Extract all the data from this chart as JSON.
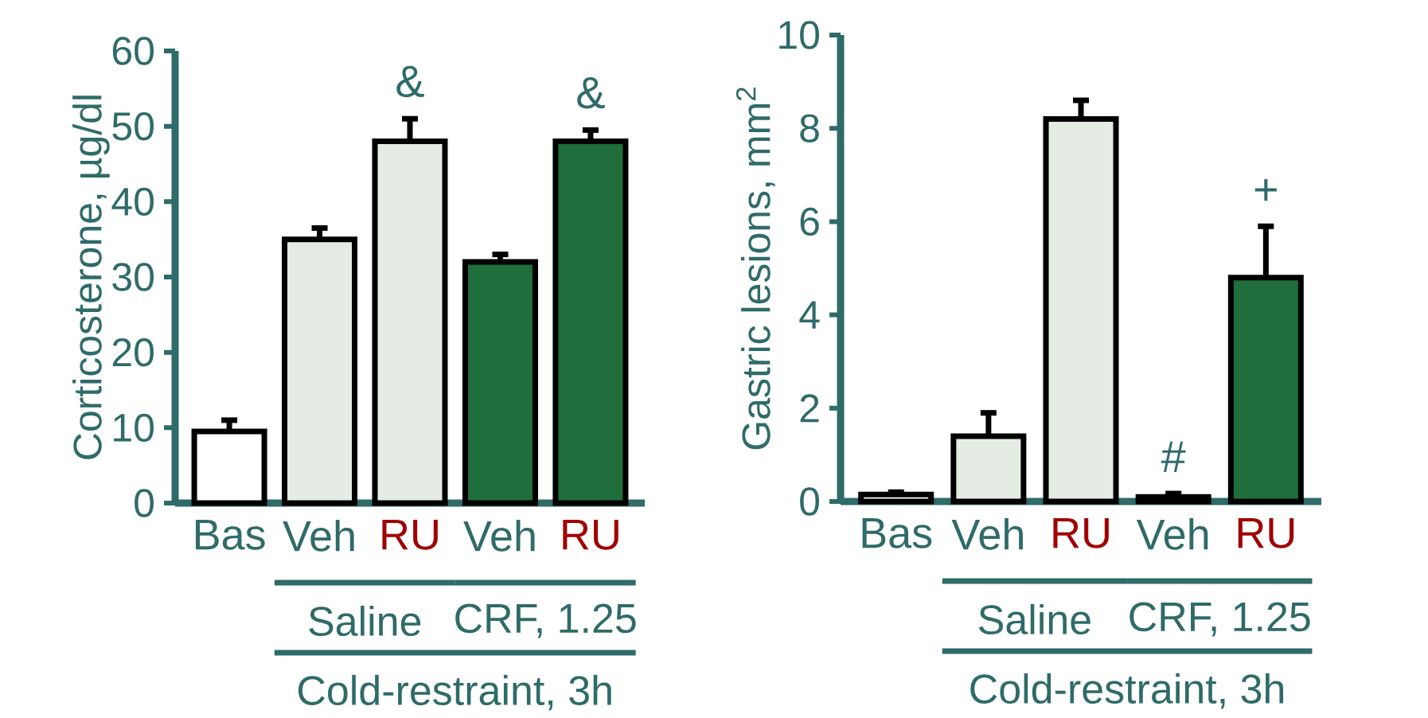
{
  "chart_data": [
    {
      "type": "bar",
      "ylabel": "Corticosterone, µg/dl",
      "categories": [
        "Bas",
        "Veh",
        "RU",
        "Veh",
        "RU"
      ],
      "values": [
        9.5,
        35,
        48,
        32,
        48
      ],
      "errors": [
        1.5,
        1.5,
        3,
        1,
        1.5
      ],
      "colors": [
        "#ffffff",
        "#e4ece4",
        "#e4ece4",
        "#1f6e3c",
        "#1f6e3c"
      ],
      "ylim": [
        0,
        60
      ],
      "yticks": [
        0,
        10,
        20,
        30,
        40,
        50,
        60
      ],
      "annotations": [
        "&",
        "&",
        "Saline",
        "CRF, 1.25",
        "Cold-restraint, 3h"
      ]
    },
    {
      "type": "bar",
      "ylabel": "Gastric lesions, mm$^{2}$",
      "categories": [
        "Bas",
        "Veh",
        "RU",
        "Veh",
        "RU"
      ],
      "values": [
        0.15,
        1.4,
        8.2,
        0.1,
        4.8
      ],
      "errors": [
        0.05,
        0.5,
        0.4,
        0.07,
        1.1
      ],
      "colors": [
        "#ffffff",
        "#e4ece4",
        "#e4ece4",
        "#1f6e3c",
        "#1f6e3c"
      ],
      "ylim": [
        0,
        10
      ],
      "yticks": [
        0,
        2,
        4,
        6,
        8,
        10
      ],
      "annotations": [
        "#",
        "+",
        "Saline",
        "CRF, 1.25",
        "Cold-restraint, 3h"
      ]
    }
  ]
}
